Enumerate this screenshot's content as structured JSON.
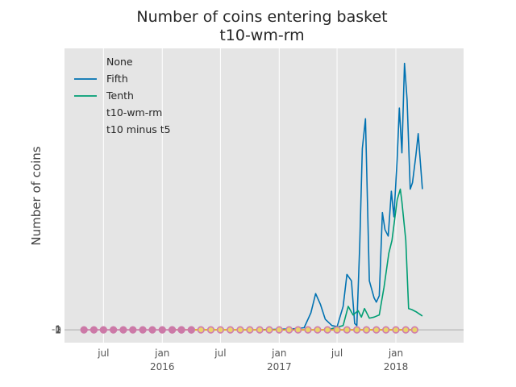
{
  "chart_data": {
    "type": "line",
    "title": "Number of coins entering basket",
    "subtitle": "t10-wm-rm",
    "xlabel": "",
    "ylabel": "Number of coins",
    "grid": true,
    "legend_placement": "top-left",
    "legend_title": "None",
    "x_ticks": [
      {
        "date": "2015-07-01",
        "label": "jul",
        "year": ""
      },
      {
        "date": "2016-01-01",
        "label": "jan",
        "year": "2016"
      },
      {
        "date": "2016-07-01",
        "label": "jul",
        "year": ""
      },
      {
        "date": "2017-01-01",
        "label": "jan",
        "year": "2017"
      },
      {
        "date": "2017-07-01",
        "label": "jul",
        "year": ""
      },
      {
        "date": "2018-01-01",
        "label": "jan",
        "year": "2018"
      }
    ],
    "y_tick_labels": [
      "-1",
      "0",
      "1",
      "2"
    ],
    "xlim": [
      "2015-03-01",
      "2018-08-01"
    ],
    "ylim": [
      -0.6,
      13.2
    ],
    "series": [
      {
        "name": "Fifth",
        "color": "#0072b2",
        "points": [
          [
            "2016-11-01",
            0
          ],
          [
            "2017-02-15",
            0.05
          ],
          [
            "2017-03-20",
            0.1
          ],
          [
            "2017-04-10",
            0.8
          ],
          [
            "2017-04-25",
            1.7
          ],
          [
            "2017-05-10",
            1.2
          ],
          [
            "2017-05-25",
            0.5
          ],
          [
            "2017-06-15",
            0.2
          ],
          [
            "2017-07-01",
            0.15
          ],
          [
            "2017-07-20",
            1.1
          ],
          [
            "2017-08-01",
            2.6
          ],
          [
            "2017-08-15",
            2.3
          ],
          [
            "2017-08-25",
            0.3
          ],
          [
            "2017-09-01",
            0.2
          ],
          [
            "2017-09-10",
            4.0
          ],
          [
            "2017-09-18",
            8.5
          ],
          [
            "2017-09-28",
            9.9
          ],
          [
            "2017-10-10",
            2.3
          ],
          [
            "2017-10-25",
            1.5
          ],
          [
            "2017-11-01",
            1.3
          ],
          [
            "2017-11-10",
            1.6
          ],
          [
            "2017-11-20",
            5.5
          ],
          [
            "2017-11-28",
            4.7
          ],
          [
            "2017-12-08",
            4.4
          ],
          [
            "2017-12-18",
            6.5
          ],
          [
            "2017-12-26",
            5.3
          ],
          [
            "2018-01-05",
            8.0
          ],
          [
            "2018-01-12",
            10.4
          ],
          [
            "2018-01-20",
            8.3
          ],
          [
            "2018-01-28",
            12.5
          ],
          [
            "2018-02-05",
            10.8
          ],
          [
            "2018-02-15",
            6.6
          ],
          [
            "2018-02-22",
            6.9
          ],
          [
            "2018-03-05",
            8.2
          ],
          [
            "2018-03-12",
            9.2
          ],
          [
            "2018-03-25",
            6.6
          ]
        ]
      },
      {
        "name": "Tenth",
        "color": "#009e73",
        "points": [
          [
            "2017-06-01",
            0
          ],
          [
            "2017-07-20",
            0.2
          ],
          [
            "2017-08-05",
            1.1
          ],
          [
            "2017-08-20",
            0.7
          ],
          [
            "2017-09-05",
            0.9
          ],
          [
            "2017-09-15",
            0.6
          ],
          [
            "2017-09-25",
            1.0
          ],
          [
            "2017-10-10",
            0.55
          ],
          [
            "2017-10-25",
            0.6
          ],
          [
            "2017-11-10",
            0.7
          ],
          [
            "2017-11-25",
            2.0
          ],
          [
            "2017-12-10",
            3.6
          ],
          [
            "2017-12-20",
            4.2
          ],
          [
            "2018-01-05",
            6.1
          ],
          [
            "2018-01-15",
            6.6
          ],
          [
            "2018-01-20",
            6.0
          ],
          [
            "2018-02-01",
            4.2
          ],
          [
            "2018-02-10",
            1.0
          ],
          [
            "2018-02-20",
            0.95
          ],
          [
            "2018-03-05",
            0.85
          ],
          [
            "2018-03-25",
            0.65
          ]
        ]
      },
      {
        "name": "t10-wm-rm",
        "color": "#e69f00",
        "marker_fill": "#e8d46a",
        "marker_edge": "#d07cac",
        "points": [
          [
            "2016-02-01",
            0
          ],
          [
            "2016-03-01",
            0
          ],
          [
            "2016-04-01",
            0
          ],
          [
            "2016-05-01",
            0
          ],
          [
            "2016-06-01",
            0
          ],
          [
            "2016-07-01",
            0
          ],
          [
            "2016-08-01",
            0
          ],
          [
            "2016-09-01",
            0
          ],
          [
            "2016-10-01",
            0
          ],
          [
            "2016-11-01",
            0
          ],
          [
            "2016-12-01",
            0
          ],
          [
            "2017-01-01",
            0
          ],
          [
            "2017-02-01",
            0
          ],
          [
            "2017-03-01",
            0
          ],
          [
            "2017-04-01",
            0
          ],
          [
            "2017-05-01",
            0
          ],
          [
            "2017-06-01",
            0
          ],
          [
            "2017-07-01",
            0
          ],
          [
            "2017-08-01",
            0
          ],
          [
            "2017-09-01",
            0
          ],
          [
            "2017-10-01",
            0
          ],
          [
            "2017-11-01",
            0
          ],
          [
            "2017-12-01",
            0
          ],
          [
            "2018-01-01",
            0
          ],
          [
            "2018-02-01",
            0
          ],
          [
            "2018-03-01",
            0
          ]
        ]
      },
      {
        "name": "t10 minus t5",
        "color": "#cc79a7",
        "marker_fill": "#cc79a7",
        "marker_edge": "#cc79a7",
        "points": [
          [
            "2015-05-01",
            0
          ],
          [
            "2015-06-01",
            0
          ],
          [
            "2015-07-01",
            0
          ],
          [
            "2015-08-01",
            0
          ],
          [
            "2015-09-01",
            0
          ],
          [
            "2015-10-01",
            0
          ],
          [
            "2015-11-01",
            0
          ],
          [
            "2015-12-01",
            0
          ],
          [
            "2016-01-01",
            0
          ],
          [
            "2016-02-01",
            0
          ],
          [
            "2016-03-01",
            0
          ],
          [
            "2016-04-01",
            0
          ]
        ]
      }
    ]
  }
}
